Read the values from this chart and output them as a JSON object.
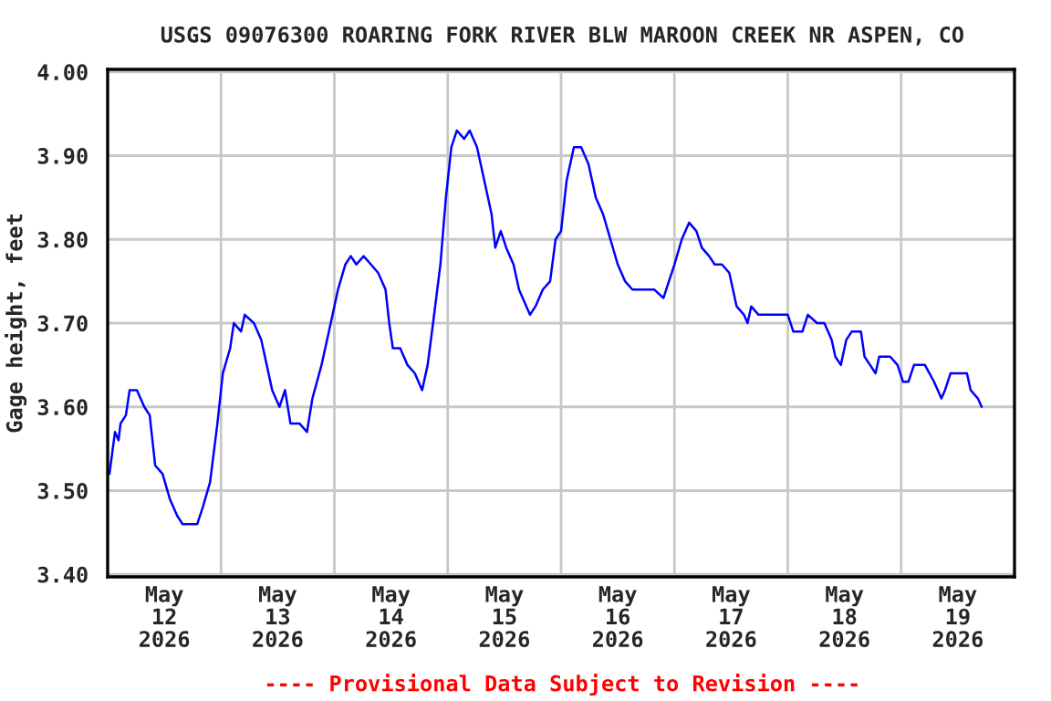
{
  "chart_data": {
    "type": "line",
    "title": "USGS 09076300 ROARING FORK RIVER BLW MAROON CREEK NR ASPEN, CO",
    "ylabel": "Gage height, feet",
    "annotations": [
      "---- Provisional Data Subject to Revision ----"
    ],
    "x": [
      "2026-05-12T00:23",
      "2026-05-12T01:33",
      "2026-05-12T02:19",
      "2026-05-12T02:43",
      "2026-05-12T03:52",
      "2026-05-12T04:39",
      "2026-05-12T06:12",
      "2026-05-12T07:45",
      "2026-05-12T08:54",
      "2026-05-12T10:04",
      "2026-05-12T11:37",
      "2026-05-12T13:10",
      "2026-05-12T14:43",
      "2026-05-12T15:52",
      "2026-05-12T17:02",
      "2026-05-12T18:58",
      "2026-05-12T20:08",
      "2026-05-12T21:41",
      "2026-05-12T23:14",
      "2026-05-13T00:23",
      "2026-05-13T01:56",
      "2026-05-13T02:43",
      "2026-05-13T04:15",
      "2026-05-13T05:02",
      "2026-05-13T06:58",
      "2026-05-13T08:31",
      "2026-05-13T09:41",
      "2026-05-13T10:50",
      "2026-05-13T12:23",
      "2026-05-13T13:33",
      "2026-05-13T14:43",
      "2026-05-13T16:39",
      "2026-05-13T18:12",
      "2026-05-13T19:21",
      "2026-05-13T21:17",
      "2026-05-13T23:14",
      "2026-05-14T00:46",
      "2026-05-14T02:19",
      "2026-05-14T03:29",
      "2026-05-14T04:39",
      "2026-05-14T06:12",
      "2026-05-14T07:45",
      "2026-05-14T09:17",
      "2026-05-14T10:50",
      "2026-05-14T11:37",
      "2026-05-14T12:23",
      "2026-05-14T13:56",
      "2026-05-14T15:29",
      "2026-05-14T17:02",
      "2026-05-14T18:35",
      "2026-05-14T19:45",
      "2026-05-14T20:54",
      "2026-05-14T22:27",
      "2026-05-14T23:37",
      "2026-05-15T00:46",
      "2026-05-15T01:56",
      "2026-05-15T03:29",
      "2026-05-15T04:39",
      "2026-05-15T06:12",
      "2026-05-15T07:45",
      "2026-05-15T09:17",
      "2026-05-15T10:04",
      "2026-05-15T11:14",
      "2026-05-15T12:23",
      "2026-05-15T13:56",
      "2026-05-15T15:06",
      "2026-05-15T16:39",
      "2026-05-15T17:25",
      "2026-05-15T18:35",
      "2026-05-15T20:08",
      "2026-05-15T21:41",
      "2026-05-15T22:50",
      "2026-05-16T00:00",
      "2026-05-16T01:10",
      "2026-05-16T02:43",
      "2026-05-16T04:15",
      "2026-05-16T05:48",
      "2026-05-16T07:21",
      "2026-05-16T08:54",
      "2026-05-16T10:27",
      "2026-05-16T12:00",
      "2026-05-16T13:33",
      "2026-05-16T15:06",
      "2026-05-16T16:39",
      "2026-05-16T18:12",
      "2026-05-16T19:45",
      "2026-05-16T21:41",
      "2026-05-16T22:50",
      "2026-05-17T00:00",
      "2026-05-17T01:33",
      "2026-05-17T03:06",
      "2026-05-17T04:39",
      "2026-05-17T05:48",
      "2026-05-17T07:21",
      "2026-05-17T08:31",
      "2026-05-17T10:04",
      "2026-05-17T11:37",
      "2026-05-17T13:10",
      "2026-05-17T14:43",
      "2026-05-17T15:29",
      "2026-05-17T16:15",
      "2026-05-17T17:48",
      "2026-05-17T20:08",
      "2026-05-18T00:00",
      "2026-05-18T01:10",
      "2026-05-18T03:06",
      "2026-05-18T04:15",
      "2026-05-18T06:12",
      "2026-05-18T07:45",
      "2026-05-18T09:17",
      "2026-05-18T10:04",
      "2026-05-18T11:14",
      "2026-05-18T12:23",
      "2026-05-18T13:33",
      "2026-05-18T15:29",
      "2026-05-18T16:15",
      "2026-05-18T17:25",
      "2026-05-18T18:35",
      "2026-05-18T19:21",
      "2026-05-18T21:41",
      "2026-05-18T23:14",
      "2026-05-19T00:23",
      "2026-05-19T01:33",
      "2026-05-19T02:43",
      "2026-05-19T05:02",
      "2026-05-19T06:58",
      "2026-05-19T08:31",
      "2026-05-19T09:17",
      "2026-05-19T10:27",
      "2026-05-19T12:23",
      "2026-05-19T13:56",
      "2026-05-19T14:43",
      "2026-05-19T16:15",
      "2026-05-19T17:02"
    ],
    "series": [
      {
        "color": "#0000ff",
        "values": [
          3.52,
          3.57,
          3.56,
          3.58,
          3.59,
          3.62,
          3.62,
          3.6,
          3.59,
          3.53,
          3.52,
          3.49,
          3.47,
          3.46,
          3.46,
          3.46,
          3.48,
          3.51,
          3.58,
          3.64,
          3.67,
          3.7,
          3.69,
          3.71,
          3.7,
          3.68,
          3.65,
          3.62,
          3.6,
          3.62,
          3.58,
          3.58,
          3.57,
          3.61,
          3.65,
          3.7,
          3.74,
          3.77,
          3.78,
          3.77,
          3.78,
          3.77,
          3.76,
          3.74,
          3.7,
          3.67,
          3.67,
          3.65,
          3.64,
          3.62,
          3.65,
          3.7,
          3.77,
          3.85,
          3.91,
          3.93,
          3.92,
          3.93,
          3.91,
          3.87,
          3.83,
          3.79,
          3.81,
          3.79,
          3.77,
          3.74,
          3.72,
          3.71,
          3.72,
          3.74,
          3.75,
          3.8,
          3.81,
          3.87,
          3.91,
          3.91,
          3.89,
          3.85,
          3.83,
          3.8,
          3.77,
          3.75,
          3.74,
          3.74,
          3.74,
          3.74,
          3.73,
          3.75,
          3.77,
          3.8,
          3.82,
          3.81,
          3.79,
          3.78,
          3.77,
          3.77,
          3.76,
          3.72,
          3.71,
          3.7,
          3.72,
          3.71,
          3.71,
          3.71,
          3.69,
          3.69,
          3.71,
          3.7,
          3.7,
          3.68,
          3.66,
          3.65,
          3.68,
          3.69,
          3.69,
          3.66,
          3.65,
          3.64,
          3.66,
          3.66,
          3.65,
          3.63,
          3.63,
          3.65,
          3.65,
          3.63,
          3.61,
          3.62,
          3.64,
          3.64,
          3.64,
          3.62,
          3.61,
          3.6
        ]
      }
    ],
    "xlim": [
      "2026-05-12T00:00",
      "2026-05-20T00:00"
    ],
    "xticks": [
      {
        "value": "2026-05-12T12:00",
        "label": "May\n12\n2026"
      },
      {
        "value": "2026-05-13T00:00",
        "label": null
      },
      {
        "value": "2026-05-13T12:00",
        "label": "May\n13\n2026"
      },
      {
        "value": "2026-05-14T00:00",
        "label": null
      },
      {
        "value": "2026-05-14T12:00",
        "label": "May\n14\n2026"
      },
      {
        "value": "2026-05-15T00:00",
        "label": null
      },
      {
        "value": "2026-05-15T12:00",
        "label": "May\n15\n2026"
      },
      {
        "value": "2026-05-16T00:00",
        "label": null
      },
      {
        "value": "2026-05-16T12:00",
        "label": "May\n16\n2026"
      },
      {
        "value": "2026-05-17T00:00",
        "label": null
      },
      {
        "value": "2026-05-17T12:00",
        "label": "May\n17\n2026"
      },
      {
        "value": "2026-05-18T00:00",
        "label": null
      },
      {
        "value": "2026-05-18T12:00",
        "label": "May\n18\n2026"
      },
      {
        "value": "2026-05-19T00:00",
        "label": null
      },
      {
        "value": "2026-05-19T12:00",
        "label": "May\n19\n2026"
      }
    ],
    "ylim": [
      3.397,
      4.003
    ],
    "yticks": [
      {
        "value": 3.4,
        "label": "3.40"
      },
      {
        "value": 3.5,
        "label": "3.50"
      },
      {
        "value": 3.6,
        "label": "3.60"
      },
      {
        "value": 3.7,
        "label": "3.70"
      },
      {
        "value": 3.8,
        "label": "3.80"
      },
      {
        "value": 3.9,
        "label": "3.90"
      },
      {
        "value": 4.0,
        "label": "4.00"
      }
    ],
    "grid": true,
    "legend": false
  }
}
